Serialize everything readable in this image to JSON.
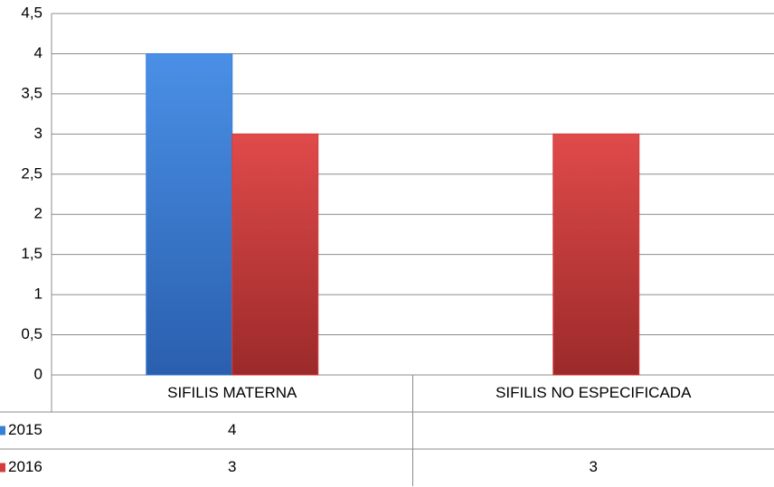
{
  "chart_data": {
    "type": "bar",
    "categories": [
      "SIFILIS MATERNA",
      "SIFILIS NO ESPECIFICADA"
    ],
    "series": [
      {
        "name": "2015",
        "color": "#3a7fd6",
        "values": [
          4,
          null
        ]
      },
      {
        "name": "2016",
        "color": "#d43d3d",
        "values": [
          3,
          3
        ]
      }
    ],
    "ylim": [
      0,
      4.5
    ],
    "yticks": [
      0,
      {
        "value": 0.5,
        "label": "0,5"
      },
      1,
      {
        "value": 1.5,
        "label": "1,5"
      },
      2,
      {
        "value": 2.5,
        "label": "2,5"
      },
      3,
      {
        "value": 3.5,
        "label": "3,5"
      },
      4,
      {
        "value": 4.5,
        "label": "4,5"
      }
    ],
    "grid": true
  }
}
